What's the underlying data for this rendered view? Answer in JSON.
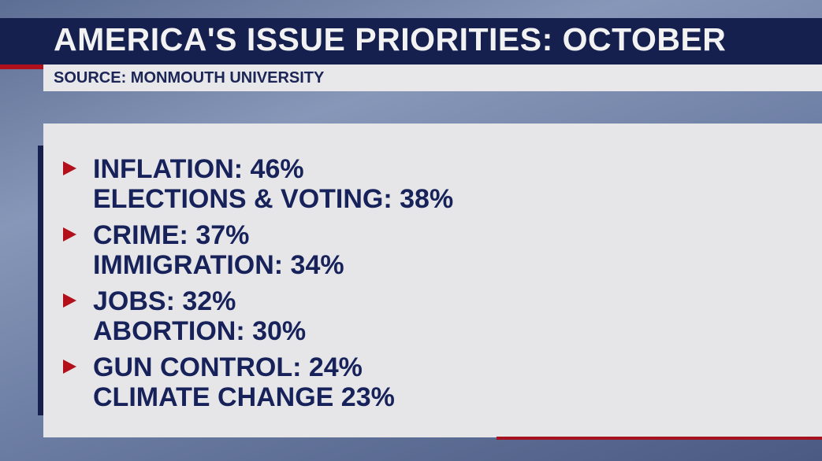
{
  "header": {
    "title": "AMERICA'S ISSUE PRIORITIES: OCTOBER",
    "source": "SOURCE: MONMOUTH UNIVERSITY"
  },
  "colors": {
    "navy": "#15204f",
    "red": "#b3101b",
    "panel": "#e6e6e8"
  },
  "groups": [
    {
      "icon": "triangle-right-icon",
      "lines": [
        "INFLATION: 46%",
        "ELECTIONS & VOTING: 38%"
      ]
    },
    {
      "icon": "triangle-right-icon",
      "lines": [
        "CRIME: 37%",
        "IMMIGRATION: 34%"
      ]
    },
    {
      "icon": "triangle-right-icon",
      "lines": [
        "JOBS: 32%",
        "ABORTION: 30%"
      ]
    },
    {
      "icon": "triangle-right-icon",
      "lines": [
        "GUN CONTROL: 24%",
        "CLIMATE CHANGE 23%"
      ]
    }
  ]
}
